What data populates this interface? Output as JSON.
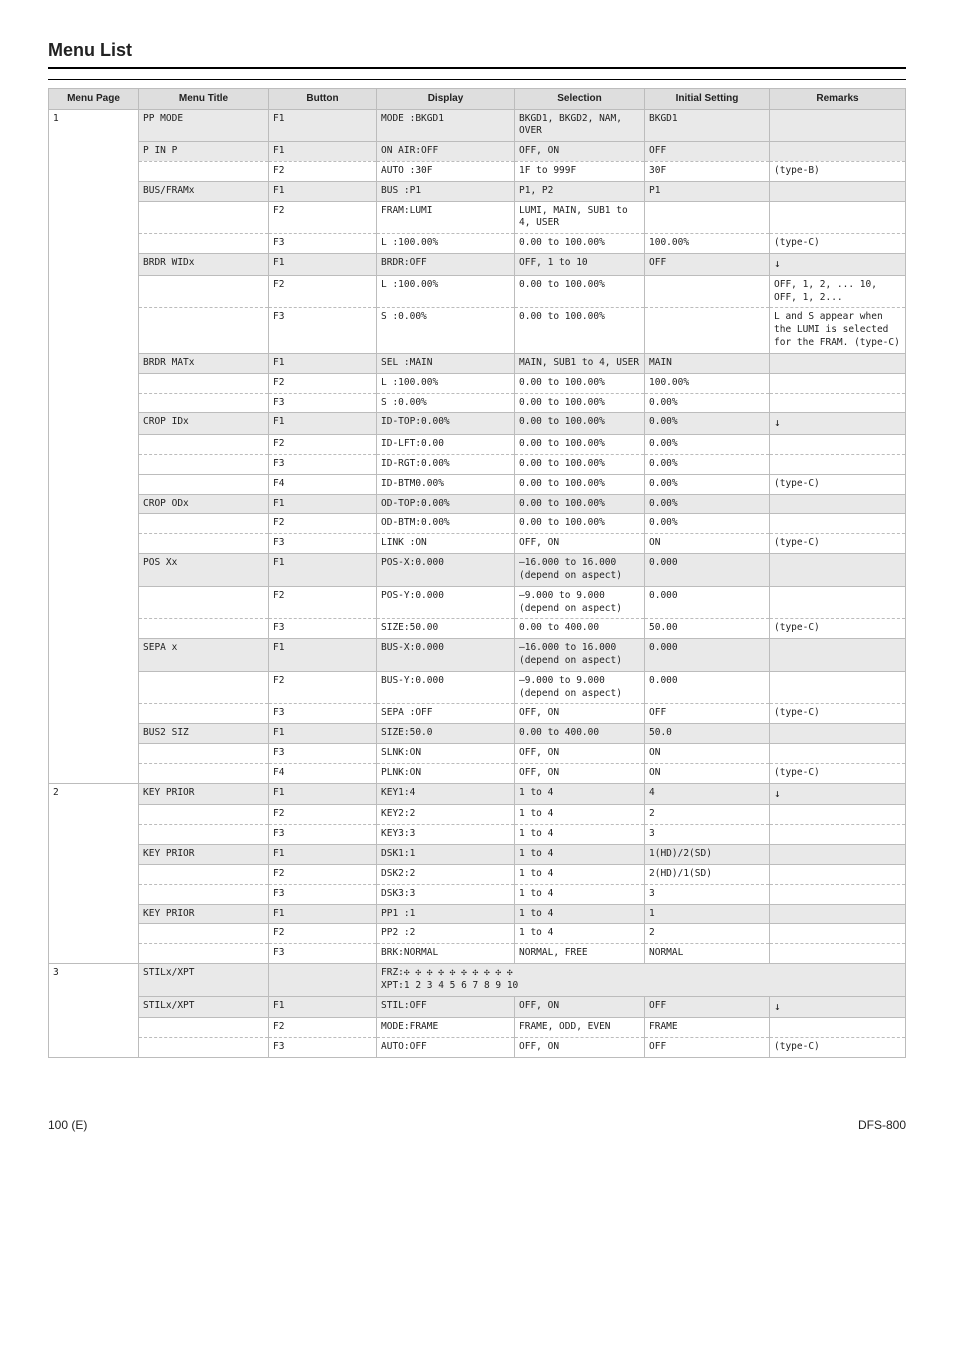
{
  "page": {
    "title": "Menu List",
    "footer_page": "100 (E)",
    "footer_model": "DFS-800"
  },
  "headers": [
    "Menu Page",
    "Menu Title",
    "Button",
    "Display",
    "Selection",
    "Initial Setting",
    "Remarks"
  ],
  "groups": [
    {
      "page": "1",
      "rows": [
        {
          "title": "PP MODE",
          "btn": "F1",
          "disp": "MODE :BKGD1",
          "sel": "BKGD1, BKGD2, NAM, OVER",
          "init": "BKGD1",
          "rem": ""
        },
        {
          "title": "P IN P",
          "btn": "F1",
          "disp": "ON AIR:OFF",
          "sel": "OFF, ON",
          "init": "OFF",
          "rem": "",
          "noBotDash": true
        },
        {
          "title": "",
          "btn": "F2",
          "disp": "AUTO :30F",
          "sel": "1F to 999F",
          "init": "30F",
          "rem": "(type-B)",
          "dashTop": true
        },
        {
          "title": "BUS/FRAMx",
          "btn": "F1",
          "disp": "BUS :P1",
          "sel": "P1, P2",
          "init": "P1",
          "rem": ""
        },
        {
          "title": "",
          "btn": "F2",
          "disp": "FRAM:LUMI",
          "sel": "LUMI, MAIN, SUB1 to 4, USER",
          "init": "",
          "rem": "",
          "noBotDash": true
        },
        {
          "title": "",
          "btn": "F3",
          "disp": "L :100.00%",
          "sel": "0.00 to 100.00%",
          "init": "100.00%",
          "rem": "(type-C)",
          "dashTop": true
        },
        {
          "title": "BRDR WIDx",
          "btn": "F1",
          "disp": "BRDR:OFF",
          "sel": "OFF, 1 to 10",
          "init": "OFF",
          "rem": "<span class='arrow'>&#8595;</span>"
        },
        {
          "title": "",
          "btn": "F2",
          "disp": "L :100.00%",
          "sel": "0.00 to 100.00%",
          "init": "",
          "rem": "OFF, 1, 2, ... 10, OFF, 1, 2...",
          "noBotDash": true
        },
        {
          "title": "",
          "btn": "F3",
          "disp": "S :0.00%",
          "sel": "0.00 to 100.00%",
          "init": "",
          "rem": "L and S appear when the LUMI is selected for the FRAM. (type-C)",
          "dashTop": true,
          "halfDash": true
        },
        {
          "title": "BRDR MATx",
          "btn": "F1",
          "disp": "SEL :MAIN",
          "sel": "MAIN, SUB1 to 4, USER",
          "init": "MAIN",
          "rem": ""
        },
        {
          "title": "",
          "btn": "F2",
          "disp": "L :100.00%",
          "sel": "0.00 to 100.00%",
          "init": "100.00%",
          "rem": "",
          "noBotDash": true
        },
        {
          "title": "",
          "btn": "F3",
          "disp": "S :0.00%",
          "sel": "0.00 to 100.00%",
          "init": "0.00%",
          "rem": "",
          "dashTop": true
        },
        {
          "title": "CROP IDx",
          "btn": "F1",
          "disp": "ID-TOP:0.00%",
          "sel": "0.00 to 100.00%",
          "init": "0.00%",
          "rem": "<span class='arrow'>&#8595;</span>"
        },
        {
          "title": "",
          "btn": "F2",
          "disp": "ID-LFT:0.00",
          "sel": "0.00 to 100.00%",
          "init": "0.00%",
          "rem": "",
          "noBotDash": true
        },
        {
          "title": "",
          "btn": "F3",
          "disp": "ID-RGT:0.00%",
          "sel": "0.00 to 100.00%",
          "init": "0.00%",
          "rem": "",
          "dashTop": true,
          "halfDash": true
        },
        {
          "title": "",
          "btn": "F4",
          "disp": "ID-BTM0.00%",
          "sel": "0.00 to 100.00%",
          "init": "0.00%",
          "rem": "(type-C)",
          "dashTop": true
        },
        {
          "title": "CROP ODx",
          "btn": "F1",
          "disp": "OD-TOP:0.00%",
          "sel": "0.00 to 100.00%",
          "init": "0.00%",
          "rem": ""
        },
        {
          "title": "",
          "btn": "F2",
          "disp": "OD-BTM:0.00%",
          "sel": "0.00 to 100.00%",
          "init": "0.00%",
          "rem": "",
          "noBotDash": true
        },
        {
          "title": "",
          "btn": "F3",
          "disp": "LINK :ON",
          "sel": "OFF, ON",
          "init": "ON",
          "rem": "(type-C)",
          "dashTop": true
        },
        {
          "title": "POS Xx",
          "btn": "F1",
          "disp": "POS-X:0.000",
          "sel": "–16.000 to 16.000 (depend on aspect)",
          "init": "0.000",
          "rem": ""
        },
        {
          "title": "",
          "btn": "F2",
          "disp": "POS-Y:0.000",
          "sel": "–9.000 to 9.000 (depend on aspect)",
          "init": "0.000",
          "rem": "",
          "noBotDash": true
        },
        {
          "title": "",
          "btn": "F3",
          "disp": "SIZE:50.00",
          "sel": "0.00 to 400.00",
          "init": "50.00",
          "rem": "(type-C)",
          "dashTop": true
        },
        {
          "title": "SEPA x",
          "btn": "F1",
          "disp": "BUS-X:0.000",
          "sel": "–16.000 to 16.000 (depend on aspect)",
          "init": "0.000",
          "rem": ""
        },
        {
          "title": "",
          "btn": "F2",
          "disp": "BUS-Y:0.000",
          "sel": "–9.000 to 9.000 (depend on aspect)",
          "init": "0.000",
          "rem": "",
          "noBotDash": true
        },
        {
          "title": "",
          "btn": "F3",
          "disp": "SEPA :OFF",
          "sel": "OFF, ON",
          "init": "OFF",
          "rem": "(type-C)",
          "dashTop": true
        },
        {
          "title": "BUS2 SIZ",
          "btn": "F1",
          "disp": "SIZE:50.0",
          "sel": "0.00 to 400.00",
          "init": "50.0",
          "rem": ""
        },
        {
          "title": "",
          "btn": "F3",
          "disp": "SLNK:ON",
          "sel": "OFF, ON",
          "init": "ON",
          "rem": "",
          "noBotDash": true
        },
        {
          "title": "",
          "btn": "F4",
          "disp": "PLNK:ON",
          "sel": "OFF, ON",
          "init": "ON",
          "rem": "(type-C)",
          "dashTop": true
        }
      ]
    },
    {
      "page": "2",
      "rows": [
        {
          "title": "KEY PRIOR",
          "btn": "F1",
          "disp": "KEY1:4",
          "sel": "1 to 4",
          "init": "4",
          "rem": "<span class='arrow'>&#8595;</span>"
        },
        {
          "title": "",
          "btn": "F2",
          "disp": "KEY2:2",
          "sel": "1 to 4",
          "init": "2",
          "rem": "",
          "noBotDash": true
        },
        {
          "title": "",
          "btn": "F3",
          "disp": "KEY3:3",
          "sel": "1 to 4",
          "init": "3",
          "rem": "",
          "dashTop": true,
          "halfDash": true
        },
        {
          "title": "KEY PRIOR",
          "btn": "F1",
          "disp": "DSK1:1",
          "sel": "1 to 4",
          "init": "1(HD)/2(SD)",
          "rem": ""
        },
        {
          "title": "",
          "btn": "F2",
          "disp": "DSK2:2",
          "sel": "1 to 4",
          "init": "2(HD)/1(SD)",
          "rem": "",
          "noBotDash": true
        },
        {
          "title": "",
          "btn": "F3",
          "disp": "DSK3:3",
          "sel": "1 to 4",
          "init": "3",
          "rem": "",
          "dashTop": true,
          "halfDash": true
        },
        {
          "title": "KEY PRIOR",
          "btn": "F1",
          "disp": "PP1 :1",
          "sel": "1 to 4",
          "init": "1",
          "rem": ""
        },
        {
          "title": "",
          "btn": "F2",
          "disp": "PP2 :2",
          "sel": "1 to 4",
          "init": "2",
          "rem": "",
          "noBotDash": true
        },
        {
          "title": "",
          "btn": "F3",
          "disp": "BRK:NORMAL",
          "sel": "NORMAL, FREE",
          "init": "NORMAL",
          "rem": "",
          "dashTop": true
        }
      ]
    },
    {
      "page": "3",
      "rows": [
        {
          "title": "STILx/XPT",
          "btn": "",
          "disp": "FRZ:&#10019; &#10019; &#10019; &#10019; &#10019; &#10019; &#10019; &#10019; &#10019; &#10019;<br>XPT:1 2 3 4 5 6 7 8 9 10",
          "sel": "",
          "init": "",
          "rem": "",
          "span": true
        },
        {
          "title": "STILx/XPT",
          "btn": "F1",
          "disp": "STIL:OFF",
          "sel": "OFF, ON",
          "init": "OFF",
          "rem": "<span class='arrow'>&#8595;</span>"
        },
        {
          "title": "",
          "btn": "F2",
          "disp": "MODE:FRAME",
          "sel": "FRAME, ODD, EVEN",
          "init": "FRAME",
          "rem": "",
          "noBotDash": true
        },
        {
          "title": "",
          "btn": "F3",
          "disp": "AUTO:OFF",
          "sel": "OFF, ON",
          "init": "OFF",
          "rem": "(type-C)",
          "dashTop": true
        }
      ]
    }
  ]
}
